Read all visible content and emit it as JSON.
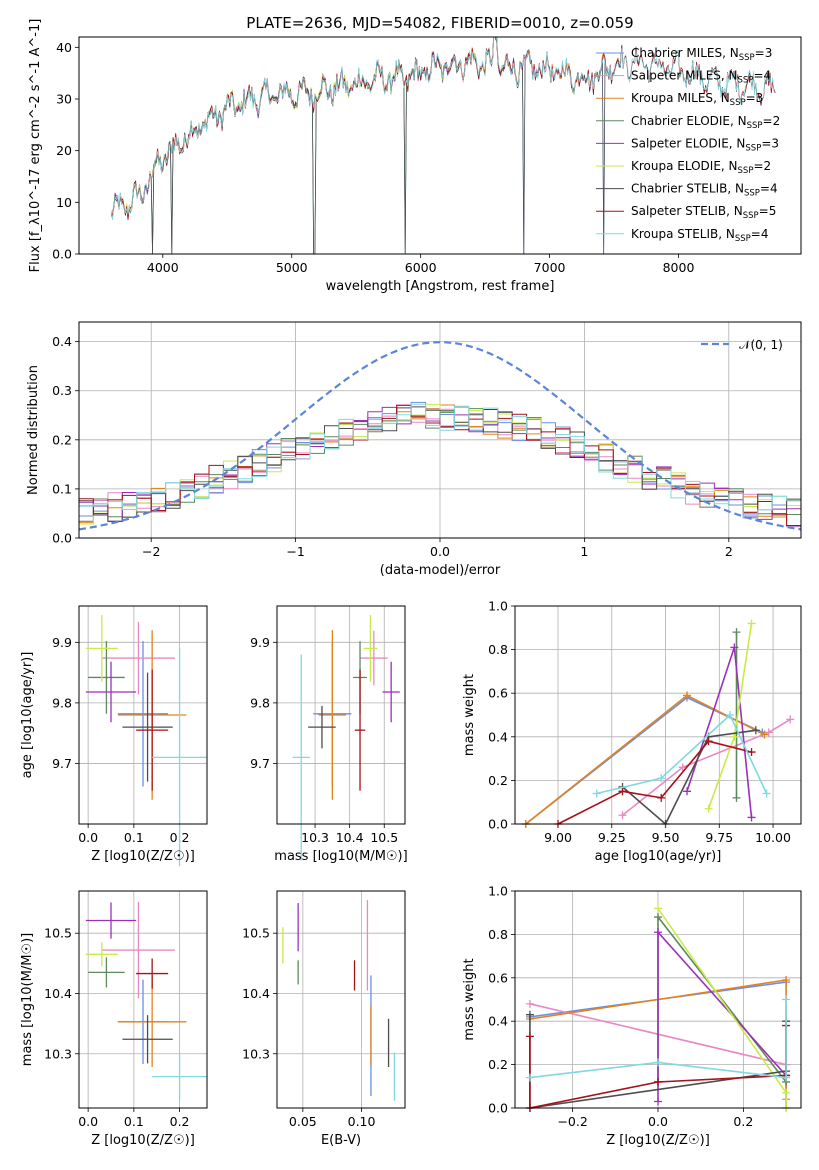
{
  "figure": {
    "title": "PLATE=2636, MJD=54082, FIBERID=0010, z=0.059"
  },
  "colors": {
    "Chabrier MILES": "#6a8fe3",
    "Salpeter MILES": "#e889c3",
    "Kroupa MILES": "#e2831e",
    "Chabrier ELODIE": "#5d8a5d",
    "Salpeter ELODIE": "#9b31b8",
    "Kroupa ELODIE": "#c9ea4a",
    "Chabrier STELIB": "#4d4d4d",
    "Salpeter STELIB": "#a4121a",
    "Kroupa STELIB": "#80d8e0",
    "normal_curve": "#5b86d8"
  },
  "chart_data": [
    {
      "id": "spectrum",
      "type": "line",
      "xlabel": "wavelength [Angstrom, rest frame]",
      "ylabel": "Flux [f_λ10^-17 erg cm^-2 s^-1 A^-1]",
      "xlim": [
        3350,
        8950
      ],
      "ylim": [
        0,
        42
      ],
      "xticks": [
        4000,
        5000,
        6000,
        7000,
        8000
      ],
      "yticks": [
        0,
        10,
        20,
        30,
        40
      ],
      "legend_position": "right",
      "continuum": [
        [
          3600,
          8
        ],
        [
          3750,
          10
        ],
        [
          3850,
          12
        ],
        [
          3950,
          17
        ],
        [
          4100,
          21
        ],
        [
          4300,
          25
        ],
        [
          4500,
          28
        ],
        [
          4700,
          30
        ],
        [
          4900,
          31
        ],
        [
          5100,
          31
        ],
        [
          5300,
          32
        ],
        [
          5500,
          33
        ],
        [
          5700,
          34
        ],
        [
          5900,
          34
        ],
        [
          6100,
          36
        ],
        [
          6300,
          37
        ],
        [
          6500,
          37
        ],
        [
          6700,
          36
        ],
        [
          6900,
          36
        ],
        [
          7100,
          35
        ],
        [
          7300,
          34
        ],
        [
          7500,
          37
        ],
        [
          7700,
          37
        ],
        [
          7900,
          36
        ],
        [
          8100,
          35
        ],
        [
          8300,
          33
        ],
        [
          8500,
          33
        ],
        [
          8700,
          32
        ]
      ],
      "series": [
        {
          "label": "Chabrier MILES",
          "n_ssp": 3,
          "end": 7550
        },
        {
          "label": "Salpeter MILES",
          "n_ssp": 4,
          "end": 7550
        },
        {
          "label": "Kroupa MILES",
          "n_ssp": 3,
          "end": 7550
        },
        {
          "label": "Chabrier ELODIE",
          "n_ssp": 2,
          "end": 6800
        },
        {
          "label": "Salpeter ELODIE",
          "n_ssp": 3,
          "end": 6800
        },
        {
          "label": "Kroupa ELODIE",
          "n_ssp": 2,
          "end": 6800
        },
        {
          "label": "Chabrier STELIB",
          "n_ssp": 4,
          "end": 8750
        },
        {
          "label": "Salpeter STELIB",
          "n_ssp": 5,
          "end": 8750
        },
        {
          "label": "Kroupa STELIB",
          "n_ssp": 4,
          "end": 8750
        }
      ],
      "drop_features": [
        3920,
        4070,
        5175,
        5880,
        6800,
        7420
      ]
    },
    {
      "id": "residuals",
      "type": "histogram",
      "xlabel": "(data-model)/error",
      "ylabel": "Normed distribution",
      "xlim": [
        -2.5,
        2.5
      ],
      "ylim": [
        0,
        0.44
      ],
      "xticks": [
        -2,
        -1,
        0,
        1,
        2
      ],
      "yticks": [
        0.0,
        0.1,
        0.2,
        0.3,
        0.4
      ],
      "grid": true,
      "legend_position": "top-right",
      "legend": "𝒩(0, 1)",
      "bin_width": 0.1,
      "bin_start": -2.5
    },
    {
      "id": "age_vs_Z",
      "type": "errorbar",
      "xlabel": "Z [log10(Z/Z☉)]",
      "ylabel": "age  [log10(age/yr)]",
      "xlim": [
        -0.02,
        0.26
      ],
      "ylim": [
        9.6,
        9.96
      ],
      "xticks": [
        0.0,
        0.1,
        0.2
      ],
      "yticks": [
        9.7,
        9.8,
        9.9
      ],
      "grid": true,
      "points": [
        {
          "label": "Chabrier MILES",
          "x": 0.12,
          "y": 9.782,
          "xerr": 0.055,
          "yerr": 0.12
        },
        {
          "label": "Salpeter MILES",
          "x": 0.11,
          "y": 9.874,
          "xerr": 0.08,
          "yerr": 0.06
        },
        {
          "label": "Kroupa MILES",
          "x": 0.14,
          "y": 9.78,
          "xerr": 0.075,
          "yerr": 0.14
        },
        {
          "label": "Chabrier ELODIE",
          "x": 0.04,
          "y": 9.842,
          "xerr": 0.04,
          "yerr": 0.06
        },
        {
          "label": "Salpeter ELODIE",
          "x": 0.05,
          "y": 9.818,
          "xerr": 0.055,
          "yerr": 0.05
        },
        {
          "label": "Kroupa ELODIE",
          "x": 0.03,
          "y": 9.89,
          "xerr": 0.035,
          "yerr": 0.055
        },
        {
          "label": "Chabrier STELIB",
          "x": 0.13,
          "y": 9.76,
          "xerr": 0.055,
          "yerr": 0.09
        },
        {
          "label": "Salpeter STELIB",
          "x": 0.14,
          "y": 9.755,
          "xerr": 0.035,
          "yerr": 0.1
        },
        {
          "label": "Kroupa STELIB",
          "x": 0.2,
          "y": 9.71,
          "xerr": 0.06,
          "yerr": 0.18
        }
      ]
    },
    {
      "id": "age_vs_mass",
      "type": "errorbar",
      "xlabel": "mass [log10(M/M☉)]",
      "ylabel": "",
      "xlim": [
        10.19,
        10.56
      ],
      "ylim": [
        9.6,
        9.96
      ],
      "xticks": [
        10.3,
        10.4,
        10.5
      ],
      "yticks": [
        9.7,
        9.8,
        9.9
      ],
      "grid": true,
      "points": [
        {
          "label": "Chabrier MILES",
          "x": 10.35,
          "y": 9.782,
          "xerr": 0.055,
          "yerr": 0.12
        },
        {
          "label": "Salpeter MILES",
          "x": 10.47,
          "y": 9.874,
          "xerr": 0.04,
          "yerr": 0.045
        },
        {
          "label": "Kroupa MILES",
          "x": 10.35,
          "y": 9.78,
          "xerr": 0.04,
          "yerr": 0.14
        },
        {
          "label": "Chabrier ELODIE",
          "x": 10.43,
          "y": 9.842,
          "xerr": 0.02,
          "yerr": 0.06
        },
        {
          "label": "Salpeter ELODIE",
          "x": 10.52,
          "y": 9.818,
          "xerr": 0.025,
          "yerr": 0.05
        },
        {
          "label": "Kroupa ELODIE",
          "x": 10.46,
          "y": 9.89,
          "xerr": 0.02,
          "yerr": 0.055
        },
        {
          "label": "Chabrier STELIB",
          "x": 10.32,
          "y": 9.76,
          "xerr": 0.04,
          "yerr": 0.035
        },
        {
          "label": "Salpeter STELIB",
          "x": 10.43,
          "y": 9.755,
          "xerr": 0.015,
          "yerr": 0.1
        },
        {
          "label": "Kroupa STELIB",
          "x": 10.26,
          "y": 9.71,
          "xerr": 0.025,
          "yerr": 0.17
        }
      ]
    },
    {
      "id": "weight_vs_age",
      "type": "line",
      "xlabel": "age  [log10(age/yr)]",
      "ylabel": "mass weight",
      "xlim": [
        8.8,
        10.13
      ],
      "ylim": [
        0,
        1.0
      ],
      "xticks": [
        9.0,
        9.25,
        9.5,
        9.75,
        10.0
      ],
      "xticklabels": [
        "9.00",
        "9.25",
        "9.50",
        "9.75",
        "10.00"
      ],
      "yticks": [
        0.0,
        0.2,
        0.4,
        0.6,
        0.8,
        1.0
      ],
      "grid": true,
      "series": [
        {
          "label": "Chabrier MILES",
          "x": [
            8.85,
            9.6,
            9.95
          ],
          "y": [
            0.0,
            0.58,
            0.42
          ]
        },
        {
          "label": "Salpeter MILES",
          "x": [
            9.3,
            9.58,
            9.98,
            10.08
          ],
          "y": [
            0.04,
            0.26,
            0.42,
            0.48
          ]
        },
        {
          "label": "Kroupa MILES",
          "x": [
            8.85,
            9.6,
            9.96
          ],
          "y": [
            0.0,
            0.59,
            0.41
          ]
        },
        {
          "label": "Chabrier ELODIE",
          "x": [
            9.83,
            9.83
          ],
          "y": [
            0.88,
            0.12
          ]
        },
        {
          "label": "Salpeter ELODIE",
          "x": [
            9.6,
            9.82,
            9.9
          ],
          "y": [
            0.15,
            0.81,
            0.03
          ]
        },
        {
          "label": "Kroupa ELODIE",
          "x": [
            9.7,
            9.82,
            9.9
          ],
          "y": [
            0.07,
            0.4,
            0.92
          ]
        },
        {
          "label": "Chabrier STELIB",
          "x": [
            9.3,
            9.5,
            9.7,
            9.92
          ],
          "y": [
            0.17,
            0.0,
            0.4,
            0.43
          ]
        },
        {
          "label": "Salpeter STELIB",
          "x": [
            9.0,
            9.3,
            9.48,
            9.7,
            9.9
          ],
          "y": [
            0.0,
            0.15,
            0.12,
            0.38,
            0.33
          ]
        },
        {
          "label": "Kroupa STELIB",
          "x": [
            9.18,
            9.48,
            9.8,
            9.97
          ],
          "y": [
            0.14,
            0.21,
            0.5,
            0.14
          ]
        }
      ]
    },
    {
      "id": "mass_vs_Z",
      "type": "errorbar",
      "xlabel": "Z [log10(Z/Z☉)]",
      "ylabel": "mass [log10(M/M☉)]",
      "xlim": [
        -0.02,
        0.26
      ],
      "ylim": [
        10.21,
        10.57
      ],
      "xticks": [
        0.0,
        0.1,
        0.2
      ],
      "yticks": [
        10.3,
        10.4,
        10.5
      ],
      "grid": true,
      "points": [
        {
          "label": "Chabrier MILES",
          "x": 0.12,
          "y": 10.353,
          "xerr": 0.055,
          "yerr": 0.07
        },
        {
          "label": "Salpeter MILES",
          "x": 0.11,
          "y": 10.472,
          "xerr": 0.08,
          "yerr": 0.08
        },
        {
          "label": "Kroupa MILES",
          "x": 0.14,
          "y": 10.353,
          "xerr": 0.075,
          "yerr": 0.075
        },
        {
          "label": "Chabrier ELODIE",
          "x": 0.04,
          "y": 10.435,
          "xerr": 0.04,
          "yerr": 0.025
        },
        {
          "label": "Salpeter ELODIE",
          "x": 0.05,
          "y": 10.521,
          "xerr": 0.055,
          "yerr": 0.03
        },
        {
          "label": "Kroupa ELODIE",
          "x": 0.03,
          "y": 10.465,
          "xerr": 0.035,
          "yerr": 0.02
        },
        {
          "label": "Chabrier STELIB",
          "x": 0.13,
          "y": 10.324,
          "xerr": 0.055,
          "yerr": 0.04
        },
        {
          "label": "Salpeter STELIB",
          "x": 0.14,
          "y": 10.433,
          "xerr": 0.035,
          "yerr": 0.025
        },
        {
          "label": "Kroupa STELIB",
          "x": 0.2,
          "y": 10.262,
          "xerr": 0.06,
          "yerr": 0.04
        }
      ]
    },
    {
      "id": "mass_vs_ebv",
      "type": "errorbar",
      "xlabel": "E(B-V)",
      "ylabel": "",
      "xlim": [
        0.028,
        0.137
      ],
      "ylim": [
        10.21,
        10.57
      ],
      "xticks": [
        0.05,
        0.1
      ],
      "xticklabels": [
        "0.05",
        "0.10"
      ],
      "yticks": [
        10.3,
        10.4,
        10.5
      ],
      "grid": true,
      "points": [
        {
          "label": "Chabrier MILES",
          "x": 0.108,
          "y": 10.33,
          "xerr": 0.0,
          "yerr": 0.1
        },
        {
          "label": "Salpeter MILES",
          "x": 0.105,
          "y": 10.48,
          "xerr": 0.0,
          "yerr": 0.075
        },
        {
          "label": "Kroupa MILES",
          "x": 0.108,
          "y": 10.33,
          "xerr": 0.0,
          "yerr": 0.05
        },
        {
          "label": "Chabrier ELODIE",
          "x": 0.046,
          "y": 10.435,
          "xerr": 0.0,
          "yerr": 0.02
        },
        {
          "label": "Salpeter ELODIE",
          "x": 0.046,
          "y": 10.51,
          "xerr": 0.0,
          "yerr": 0.04
        },
        {
          "label": "Kroupa ELODIE",
          "x": 0.033,
          "y": 10.48,
          "xerr": 0.0,
          "yerr": 0.03
        },
        {
          "label": "Chabrier STELIB",
          "x": 0.123,
          "y": 10.318,
          "xerr": 0.0,
          "yerr": 0.04
        },
        {
          "label": "Salpeter STELIB",
          "x": 0.094,
          "y": 10.43,
          "xerr": 0.0,
          "yerr": 0.025
        },
        {
          "label": "Kroupa STELIB",
          "x": 0.128,
          "y": 10.262,
          "xerr": 0.0,
          "yerr": 0.04
        }
      ]
    },
    {
      "id": "weight_vs_Z",
      "type": "line",
      "xlabel": "Z [log10(Z/Z☉)]",
      "ylabel": "mass weight",
      "xlim": [
        -0.335,
        0.335
      ],
      "ylim": [
        0,
        1.0
      ],
      "xticks": [
        -0.2,
        0.0,
        0.2
      ],
      "yticks": [
        0.0,
        0.2,
        0.4,
        0.6,
        0.8,
        1.0
      ],
      "grid": true,
      "series": [
        {
          "label": "Chabrier MILES",
          "x": [
            -0.3,
            0.3
          ],
          "y": [
            0.42,
            0.58
          ]
        },
        {
          "label": "Salpeter MILES",
          "x": [
            -0.3,
            0.3,
            0.3
          ],
          "y": [
            0.48,
            0.2,
            0.04
          ]
        },
        {
          "label": "Kroupa MILES",
          "x": [
            -0.3,
            0.3,
            0.3
          ],
          "y": [
            0.41,
            0.59,
            0.0
          ]
        },
        {
          "label": "Chabrier ELODIE",
          "x": [
            0.0,
            0.0,
            0.3
          ],
          "y": [
            0.12,
            0.88,
            0.12
          ]
        },
        {
          "label": "Salpeter ELODIE",
          "x": [
            0.0,
            0.0,
            0.3
          ],
          "y": [
            0.03,
            0.81,
            0.15
          ]
        },
        {
          "label": "Kroupa ELODIE",
          "x": [
            0.0,
            0.3,
            0.3
          ],
          "y": [
            0.92,
            0.07,
            0.0
          ]
        },
        {
          "label": "Chabrier STELIB",
          "x": [
            -0.3,
            -0.3,
            0.3,
            0.3
          ],
          "y": [
            0.43,
            0.0,
            0.17,
            0.4
          ]
        },
        {
          "label": "Salpeter STELIB",
          "x": [
            -0.3,
            -0.3,
            0.0,
            0.3,
            0.3
          ],
          "y": [
            0.33,
            0.0,
            0.12,
            0.15,
            0.38
          ]
        },
        {
          "label": "Kroupa STELIB",
          "x": [
            -0.3,
            0.0,
            0.3,
            0.3
          ],
          "y": [
            0.14,
            0.21,
            0.14,
            0.5
          ]
        }
      ]
    }
  ]
}
